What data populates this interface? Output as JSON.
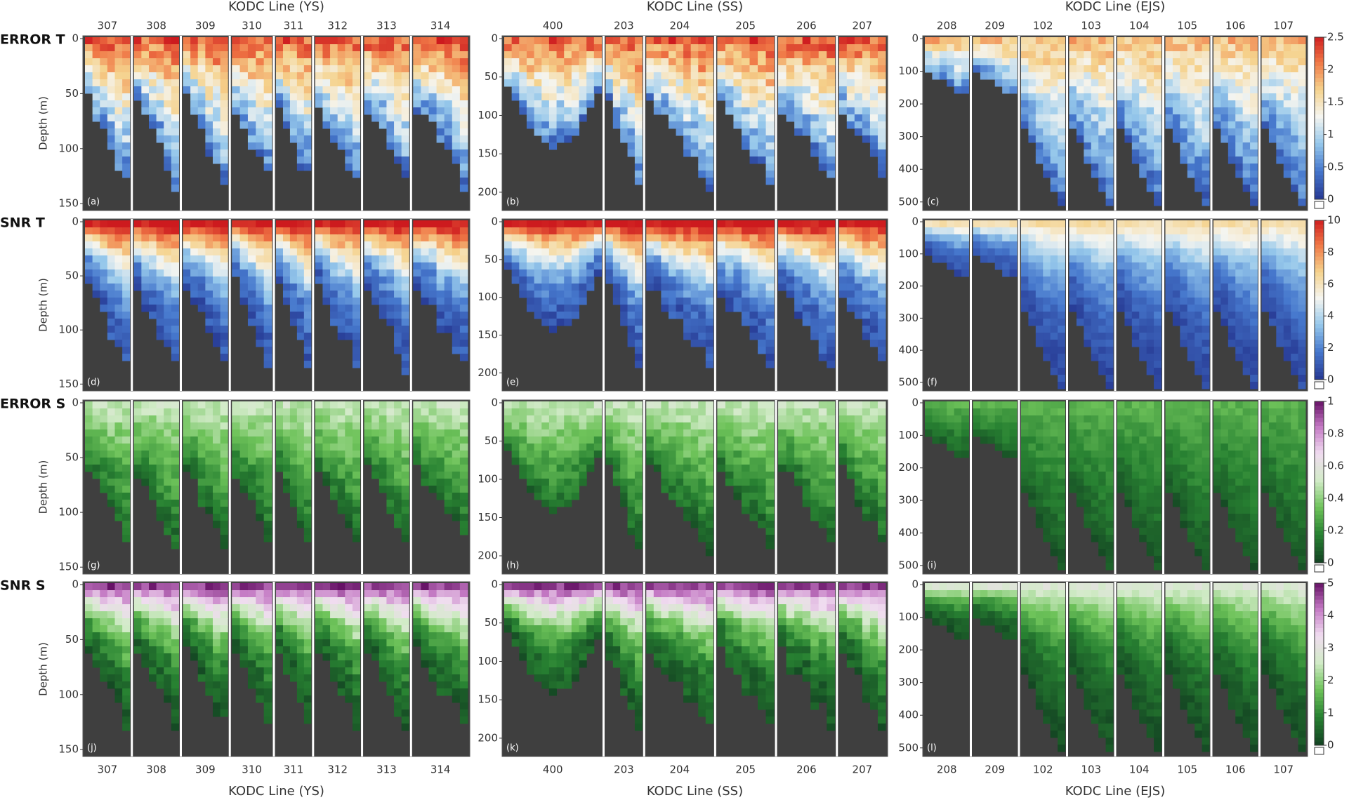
{
  "chart_data": {
    "type": "heatmap",
    "depth_label": "Depth (m)",
    "rows": [
      {
        "label": "ERROR T",
        "cmap": "temp"
      },
      {
        "label": "SNR T",
        "cmap": "temp"
      },
      {
        "label": "ERROR S",
        "cmap": "salt"
      },
      {
        "label": "SNR S",
        "cmap": "salt"
      }
    ],
    "columns": [
      {
        "title": "KODC Line (YS)",
        "lines": [
          "307",
          "308",
          "309",
          "310",
          "311",
          "312",
          "313",
          "314"
        ],
        "ylim": [
          0,
          155
        ],
        "yticks": [
          0,
          50,
          100,
          150
        ]
      },
      {
        "title": "KODC Line (SS)",
        "lines": [
          "400",
          "203",
          "204",
          "205",
          "206",
          "207"
        ],
        "ylim": [
          0,
          222
        ],
        "yticks": [
          0,
          50,
          100,
          150,
          200
        ]
      },
      {
        "title": "KODC Line (EJS)",
        "lines": [
          "208",
          "209",
          "102",
          "103",
          "104",
          "105",
          "106",
          "107"
        ],
        "ylim": [
          0,
          522
        ],
        "yticks": [
          0,
          100,
          200,
          300,
          400,
          500
        ]
      }
    ],
    "panels": [
      "(a)",
      "(b)",
      "(c)",
      "(d)",
      "(e)",
      "(f)",
      "(g)",
      "(h)",
      "(i)",
      "(j)",
      "(k)",
      "(l)"
    ],
    "colorbars": [
      {
        "clim": [
          0,
          2.5
        ],
        "ticks": [
          0,
          0.5,
          1,
          1.5,
          2,
          2.5
        ]
      },
      {
        "clim": [
          0,
          10
        ],
        "ticks": [
          0,
          2,
          4,
          6,
          8,
          10
        ]
      },
      {
        "clim": [
          0,
          1
        ],
        "ticks": [
          0,
          0.2,
          0.4,
          0.6,
          0.8,
          1
        ]
      },
      {
        "clim": [
          0,
          5
        ],
        "ticks": [
          0,
          1,
          2,
          3,
          4,
          5
        ]
      }
    ]
  }
}
